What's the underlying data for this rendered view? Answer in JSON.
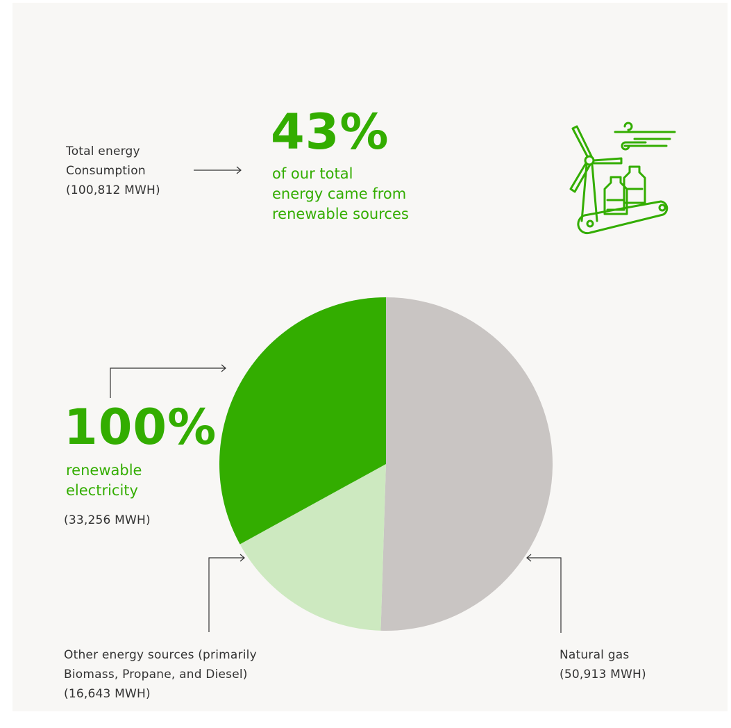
{
  "chart_data": {
    "type": "pie",
    "total_label_lines": [
      "Total energy",
      "Consumption",
      "(100,812 MWH)"
    ],
    "headline": {
      "value": "43%",
      "caption_lines": [
        "of our total",
        "energy came from",
        "renewable sources"
      ]
    },
    "slices": [
      {
        "name": "renewable electricity",
        "value": 33256,
        "big": "100%",
        "lines": [
          "renewable",
          "electricity"
        ],
        "amount": "(33,256 MWH)",
        "color": "#33ad00"
      },
      {
        "name": "Other energy sources",
        "value": 16643,
        "lines": [
          "Other energy sources (primarily",
          "Biomass, Propane, and Diesel)"
        ],
        "amount": "(16,643 MWH)",
        "color": "#cde9c0"
      },
      {
        "name": "Natural gas",
        "value": 50913,
        "lines": [
          "Natural gas"
        ],
        "amount": "(50,913 MWH)",
        "color": "#c9c5c3"
      }
    ]
  },
  "icon": "wind-turbine-bottles-conveyor-icon",
  "colors": {
    "accent": "#33ad00",
    "background": "#f8f7f5",
    "text": "#333333"
  }
}
